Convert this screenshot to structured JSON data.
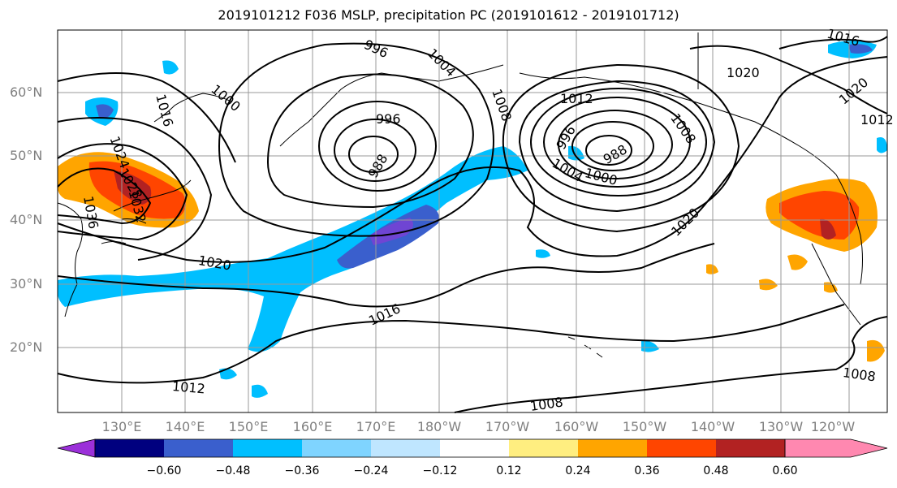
{
  "title": "2019101212 F036 MSLP, precipitation PC (2019101612 - 2019101712)",
  "latitude_labels": [
    "60°N",
    "50°N",
    "40°N",
    "30°N",
    "20°N"
  ],
  "longitude_labels": [
    "130°E",
    "140°E",
    "150°E",
    "160°E",
    "170°E",
    "180°W",
    "170°W",
    "160°W",
    "150°W",
    "140°W",
    "130°W",
    "120°W"
  ],
  "colorbar": {
    "colors": [
      "#9b30d9",
      "#00007f",
      "#3a5fcd",
      "#00bfff",
      "#7fd4ff",
      "#bfe6ff",
      "#ffffff",
      "#ffee80",
      "#ffa500",
      "#ff4500",
      "#b22222",
      "#ff88b0"
    ],
    "tick_labels": [
      "−0.60",
      "−0.48",
      "−0.36",
      "−0.24",
      "−0.12",
      "0.12",
      "0.24",
      "0.36",
      "0.48",
      "0.60"
    ]
  },
  "contour_labels": {
    "l996a": "996",
    "l1004a": "1004",
    "l1008a": "1008",
    "l1000a": "1000",
    "l1016a": "1016",
    "l1012a": "1012",
    "l1020a": "1020",
    "l1016b": "1016",
    "l996b": "996",
    "l988a": "988",
    "l1012b": "1012",
    "l996c": "996",
    "l988b": "988",
    "l1000b": "1000",
    "l1004b": "1004",
    "l1008b": "1008",
    "l1020b": "1020",
    "l1020c": "1020",
    "l1020d": "1020",
    "l1016c": "1016",
    "l1012c": "1012",
    "l1008c": "1008",
    "l1008d": "1008",
    "l1012d": "1012",
    "l1016d": "1016",
    "l1036": "1036",
    "l1028": "1028",
    "l1024": "1024",
    "l1032": "1032"
  },
  "colors": {
    "graticule": "#999999",
    "contour": "#000000",
    "axis_text": "#7f7f7f"
  }
}
